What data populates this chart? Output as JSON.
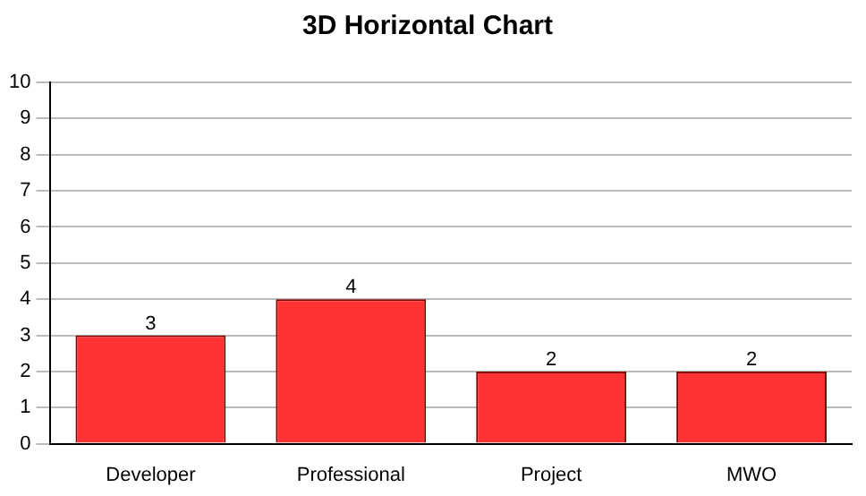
{
  "chart_data": {
    "type": "bar",
    "title": "3D Horizontal Chart",
    "categories": [
      "Developer",
      "Professional",
      "Project",
      "MWO"
    ],
    "values": [
      3,
      4,
      2,
      2
    ],
    "color": "#ff3333",
    "ylim": [
      0,
      10
    ],
    "yticks": [
      0,
      1,
      2,
      3,
      4,
      5,
      6,
      7,
      8,
      9,
      10
    ],
    "grid": "y",
    "data_labels": true
  }
}
